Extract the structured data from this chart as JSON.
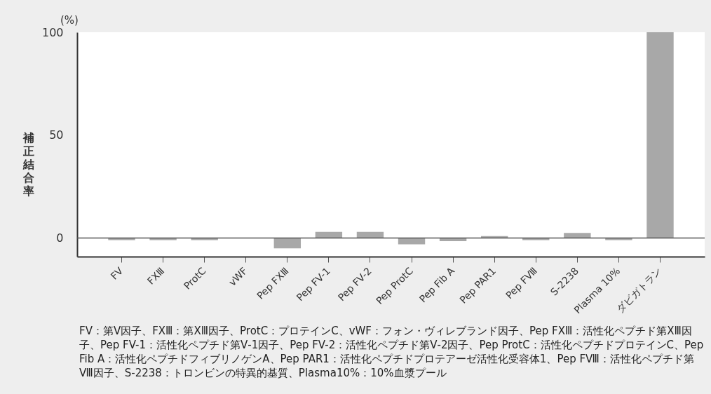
{
  "chart_data": {
    "type": "bar",
    "ylabel": "補正結合率",
    "categories": [
      "FV",
      "FⅩⅢ",
      "ProtC",
      "vWF",
      "Pep FⅩⅢ",
      "Pep FV-1",
      "Pep FV-2",
      "Pep ProtC",
      "Pep Fib A",
      "Pep PAR1",
      "Pep FⅧ",
      "S-2238",
      "Plasma 10%",
      "ダビガトラン"
    ],
    "values": [
      -1,
      -1,
      -1,
      0,
      -5,
      3,
      3,
      -3,
      -1.5,
      1,
      -1,
      2.5,
      -1,
      100
    ],
    "color": "#a8a8a8",
    "ylim": [
      -9,
      100
    ],
    "yticks": [
      0,
      50,
      100
    ],
    "grid": false,
    "ref_lines": [
      {
        "axis": "y",
        "value": 0,
        "color": "#555555"
      }
    ],
    "annotations": [
      "(%)",
      "FV：第Ⅴ因子、FⅩⅢ：第ⅩⅢ因子、ProtC：プロテインC、vWF：フォン・ヴィレブランド因子、Pep FⅩⅢ：活性化ペプチド第ⅩⅢ因子、Pep FV-1：活性化ペプチド第Ⅴ-1因子、Pep FV-2：活性化ペプチド第Ⅴ-2因子、Pep ProtC：活性化ペプチドプロテインC、Pep Fib A：活性化ペプチドフィブリノゲンA、Pep PAR1：活性化ペプチドプロテアーゼ活性化受容体1、Pep FⅧ：活性化ペプチド第Ⅷ因子、S-2238：トロンビンの特異的基質、Plasma10%：10%血漿プール"
    ]
  }
}
